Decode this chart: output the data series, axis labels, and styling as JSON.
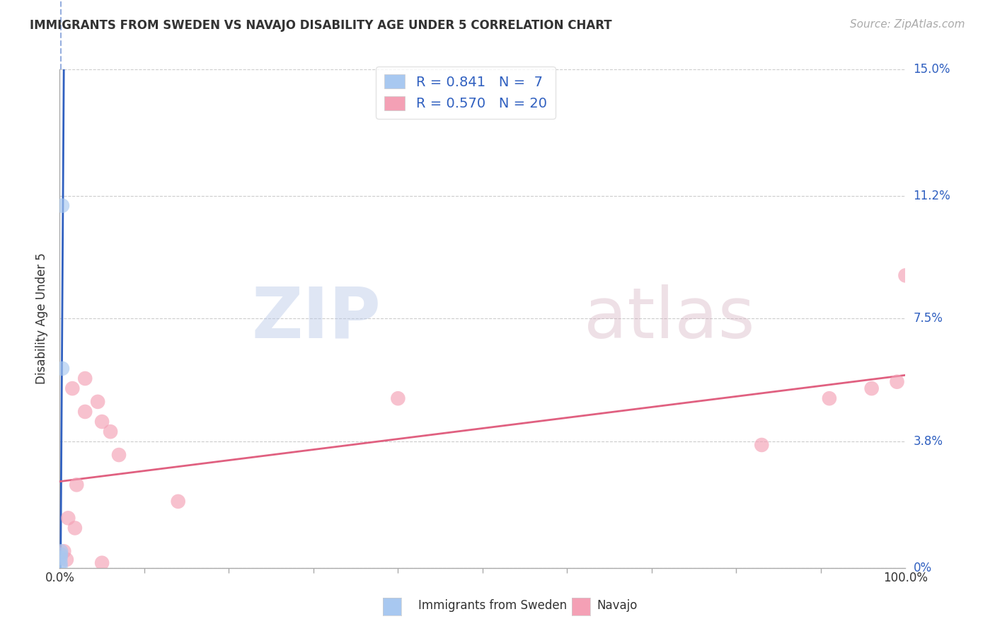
{
  "title": "IMMIGRANTS FROM SWEDEN VS NAVAJO DISABILITY AGE UNDER 5 CORRELATION CHART",
  "source": "Source: ZipAtlas.com",
  "ylabel": "Disability Age Under 5",
  "ytick_labels": [
    "15.0%",
    "11.2%",
    "7.5%",
    "3.8%",
    "0%"
  ],
  "ytick_values": [
    15.0,
    11.2,
    7.5,
    3.8,
    0.0
  ],
  "xlim": [
    0,
    100
  ],
  "ylim": [
    0,
    15.0
  ],
  "watermark_zip": "ZIP",
  "watermark_atlas": "atlas",
  "legend_blue_R": 0.841,
  "legend_blue_N": 7,
  "legend_pink_R": 0.57,
  "legend_pink_N": 20,
  "blue_color": "#a8c8f0",
  "pink_color": "#f4a0b5",
  "blue_line_color": "#3060c0",
  "pink_line_color": "#e06080",
  "blue_scatter_x": [
    0.3,
    0.3,
    0.1,
    0.1,
    0.1,
    0.15,
    0.15
  ],
  "blue_scatter_y": [
    10.9,
    6.0,
    0.05,
    0.15,
    0.3,
    0.4,
    0.5
  ],
  "pink_scatter_x": [
    1.5,
    3.0,
    4.5,
    5.0,
    6.0,
    7.0,
    3.0,
    0.5,
    1.0,
    2.0,
    5.0,
    40.0,
    0.8,
    83.0,
    91.0,
    96.0,
    99.0,
    100.0,
    1.8,
    14.0
  ],
  "pink_scatter_y": [
    5.4,
    4.7,
    5.0,
    4.4,
    4.1,
    3.4,
    5.7,
    0.5,
    1.5,
    2.5,
    0.15,
    5.1,
    0.25,
    3.7,
    5.1,
    5.4,
    5.6,
    8.8,
    1.2,
    2.0
  ],
  "pink_line_x0": 0,
  "pink_line_y0": 2.6,
  "pink_line_x1": 100,
  "pink_line_y1": 5.8,
  "background_color": "#ffffff",
  "grid_color": "#cccccc",
  "text_color": "#3060c0",
  "axis_color": "#aaaaaa",
  "title_color": "#333333"
}
